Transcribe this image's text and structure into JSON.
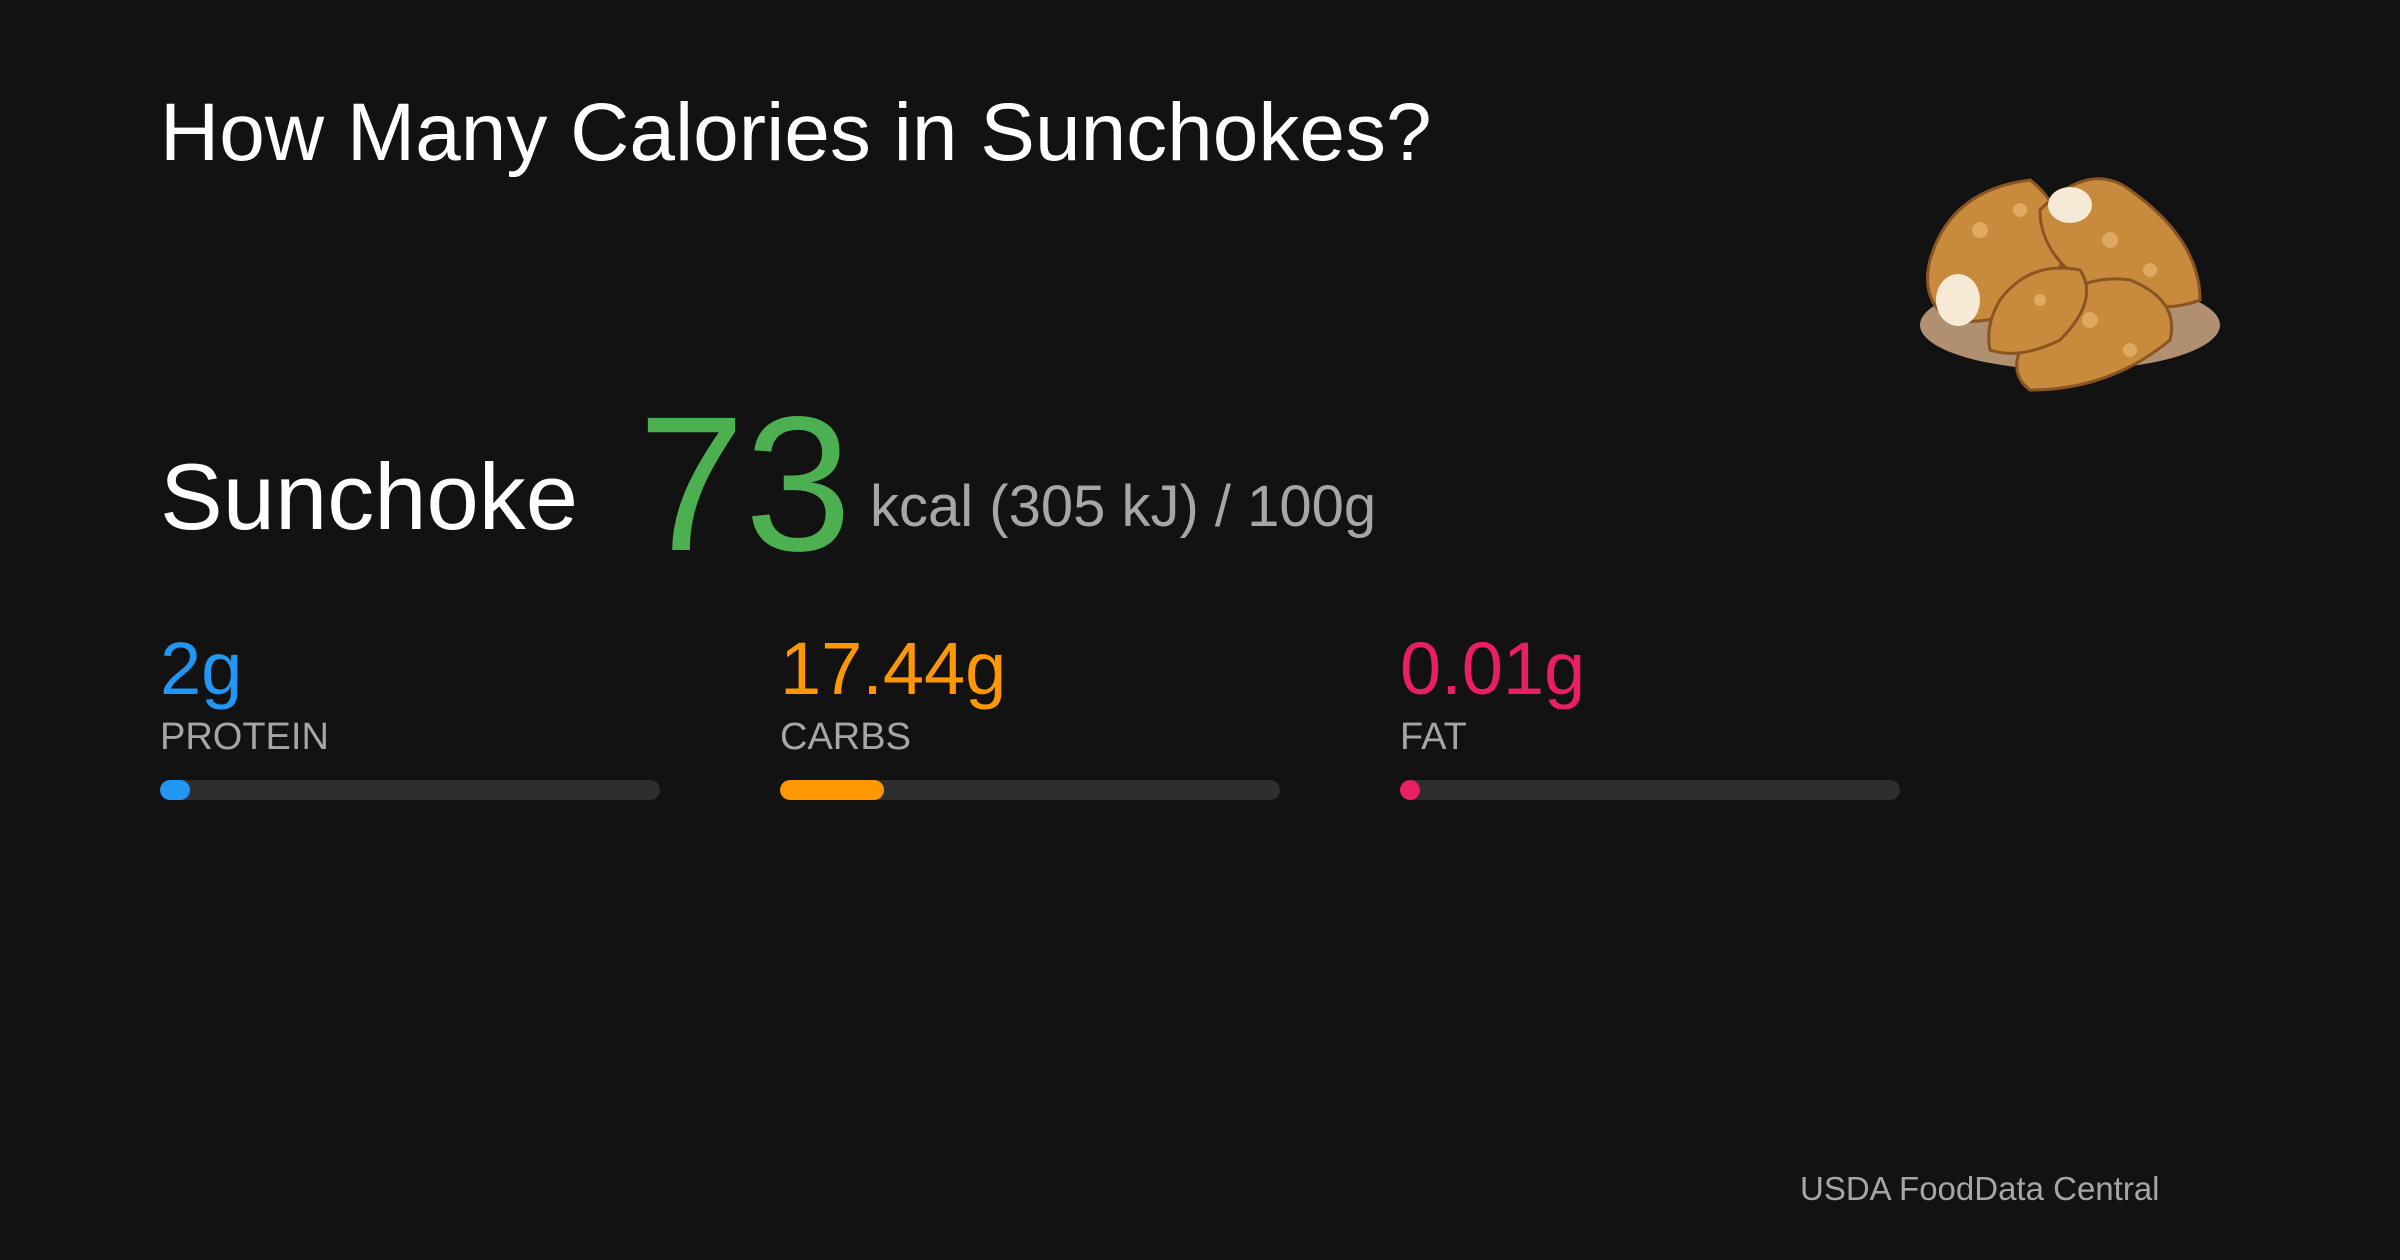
{
  "header": {
    "title": "How Many Calories in Sunchokes?"
  },
  "food": {
    "name": "Sunchoke",
    "calories": 73,
    "unit_text": "kcal (305 kJ) / 100g",
    "color": "#4caf50"
  },
  "macros": [
    {
      "value": 2,
      "value_label": "2g",
      "name": "PROTEIN",
      "color": "#2196f3"
    },
    {
      "value": 17.44,
      "value_label": "17.44g",
      "name": "CARBS",
      "color": "#ff9800"
    },
    {
      "value": 0.01,
      "value_label": "0.01g",
      "name": "FAT",
      "color": "#e91e63"
    }
  ],
  "source": "USDA FoodData Central"
}
